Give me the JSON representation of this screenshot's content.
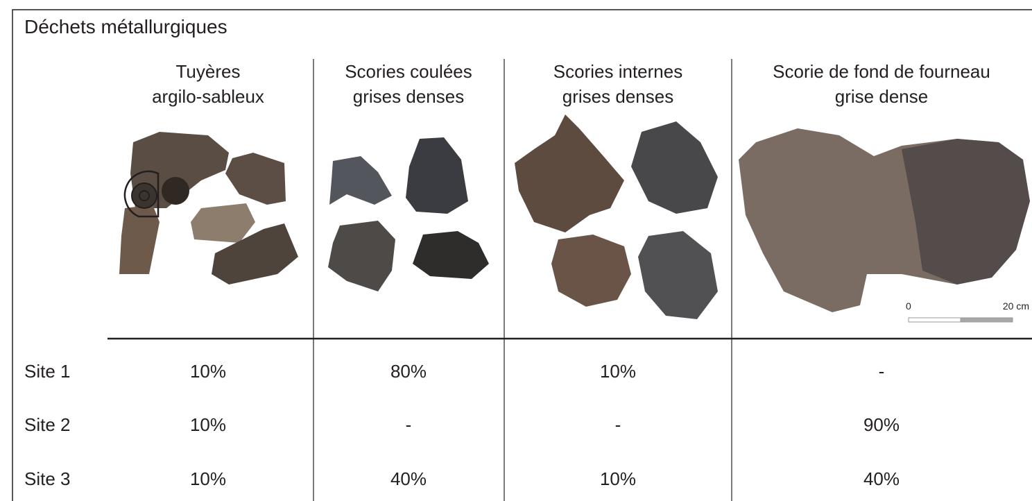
{
  "title": "Déchets métallurgiques",
  "columns": [
    {
      "lines": [
        "Tuyères",
        "argilo-sableux"
      ]
    },
    {
      "lines": [
        "Scories coulées",
        "grises denses"
      ]
    },
    {
      "lines": [
        "Scories internes",
        "grises denses"
      ]
    },
    {
      "lines": [
        "Scorie de fond de fourneau",
        "grise dense"
      ]
    }
  ],
  "scale": {
    "start": "0",
    "end": "20 cm"
  },
  "rows": [
    {
      "label": "Site 1",
      "cells": [
        "10%",
        "80%",
        "10%",
        "-"
      ]
    },
    {
      "label": "Site 2",
      "cells": [
        "10%",
        "-",
        "-",
        "90%"
      ]
    },
    {
      "label": "Site 3",
      "cells": [
        "10%",
        "40%",
        "10%",
        "40%"
      ]
    }
  ]
}
